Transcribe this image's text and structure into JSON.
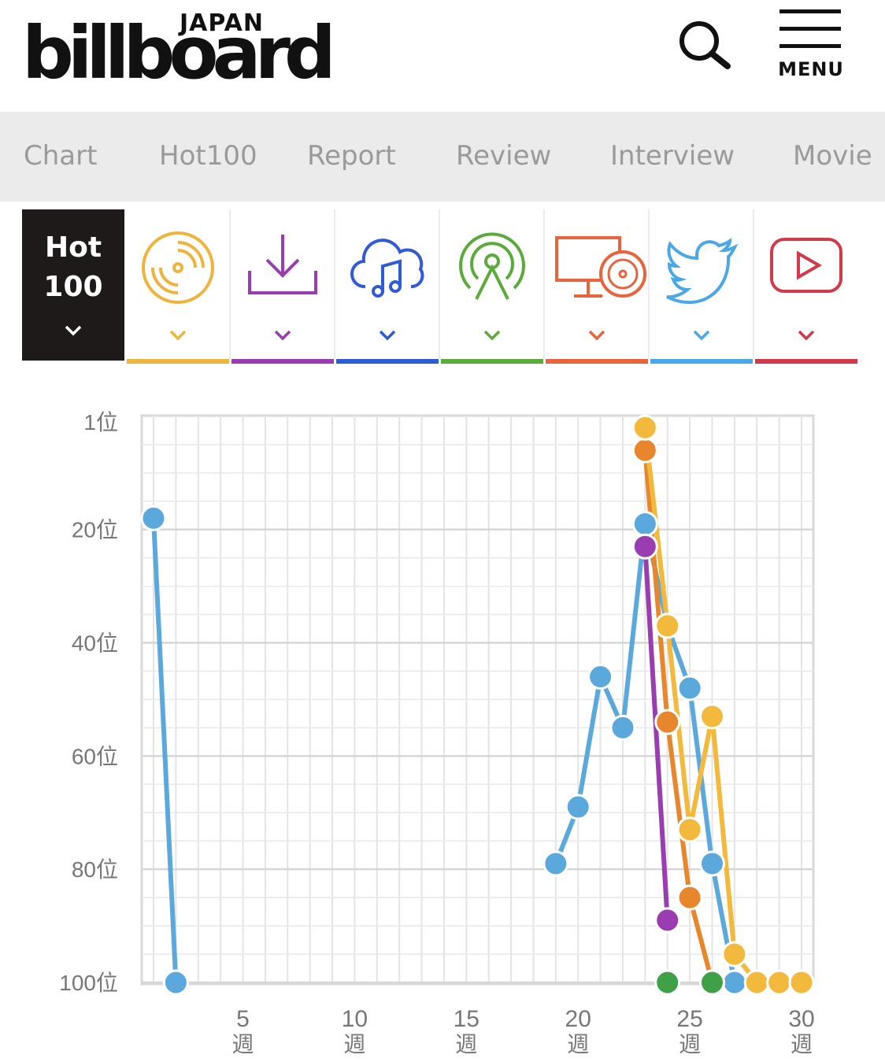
{
  "header": {
    "logo_top": "JAPAN",
    "logo_main": "billboard",
    "menu_label": "MENU",
    "search_icon": "search-icon",
    "menu_icon": "hamburger-icon"
  },
  "nav": {
    "items": [
      "Chart",
      "Hot100",
      "Report",
      "Review",
      "Interview",
      "Movie"
    ]
  },
  "tiles": [
    {
      "label_line1": "Hot",
      "label_line2": "100",
      "icon": "chevron-down-icon",
      "color": "#ffffff"
    },
    {
      "icon": "cd-icon",
      "color": "#f0b43c"
    },
    {
      "icon": "download-icon",
      "color": "#9a3db0"
    },
    {
      "icon": "cloud-music-icon",
      "color": "#2f5bd6"
    },
    {
      "icon": "radio-tower-icon",
      "color": "#5aaa3c"
    },
    {
      "icon": "pc-cd-icon",
      "color": "#e8643c"
    },
    {
      "icon": "twitter-icon",
      "color": "#4aa8e8"
    },
    {
      "icon": "youtube-icon",
      "color": "#d23a4a"
    }
  ],
  "chart_data": {
    "type": "line",
    "ylim": [
      1,
      100
    ],
    "y_reversed": true,
    "xlim": [
      1,
      30
    ],
    "grid": true,
    "y_ticks": [
      {
        "value": 1,
        "label": "1位"
      },
      {
        "value": 20,
        "label": "20位"
      },
      {
        "value": 40,
        "label": "40位"
      },
      {
        "value": 60,
        "label": "60位"
      },
      {
        "value": 80,
        "label": "80位"
      },
      {
        "value": 100,
        "label": "100位"
      }
    ],
    "x_ticks": [
      {
        "value": 5,
        "label": "5",
        "unit": "週"
      },
      {
        "value": 10,
        "label": "10",
        "unit": "週"
      },
      {
        "value": 15,
        "label": "15",
        "unit": "週"
      },
      {
        "value": 20,
        "label": "20",
        "unit": "週"
      },
      {
        "value": 25,
        "label": "25",
        "unit": "週"
      },
      {
        "value": 30,
        "label": "30",
        "unit": "週"
      }
    ],
    "series": [
      {
        "color": "#5aa8dc",
        "points": [
          [
            1,
            18
          ],
          [
            2,
            100
          ],
          null,
          [
            19,
            79
          ],
          [
            20,
            69
          ],
          [
            21,
            46
          ],
          [
            22,
            55
          ],
          [
            23,
            19
          ],
          [
            24,
            37
          ],
          [
            25,
            48
          ],
          [
            26,
            79
          ],
          [
            27,
            100
          ]
        ]
      },
      {
        "color": "#e8862e",
        "points": [
          [
            23,
            6
          ],
          [
            24,
            54
          ],
          [
            25,
            85
          ],
          [
            26,
            100
          ]
        ]
      },
      {
        "color": "#9a3db0",
        "points": [
          [
            23,
            23
          ],
          [
            24,
            89
          ]
        ]
      },
      {
        "color": "#f2b93d",
        "points": [
          [
            23,
            2
          ],
          [
            24,
            37
          ],
          [
            25,
            73
          ],
          [
            26,
            53
          ],
          [
            27,
            95
          ],
          [
            28,
            100
          ],
          [
            29,
            100
          ],
          [
            30,
            100
          ]
        ]
      },
      {
        "color": "#3fa048",
        "points": [
          [
            24,
            100
          ],
          [
            26,
            100
          ]
        ],
        "markers_only": true
      }
    ]
  }
}
